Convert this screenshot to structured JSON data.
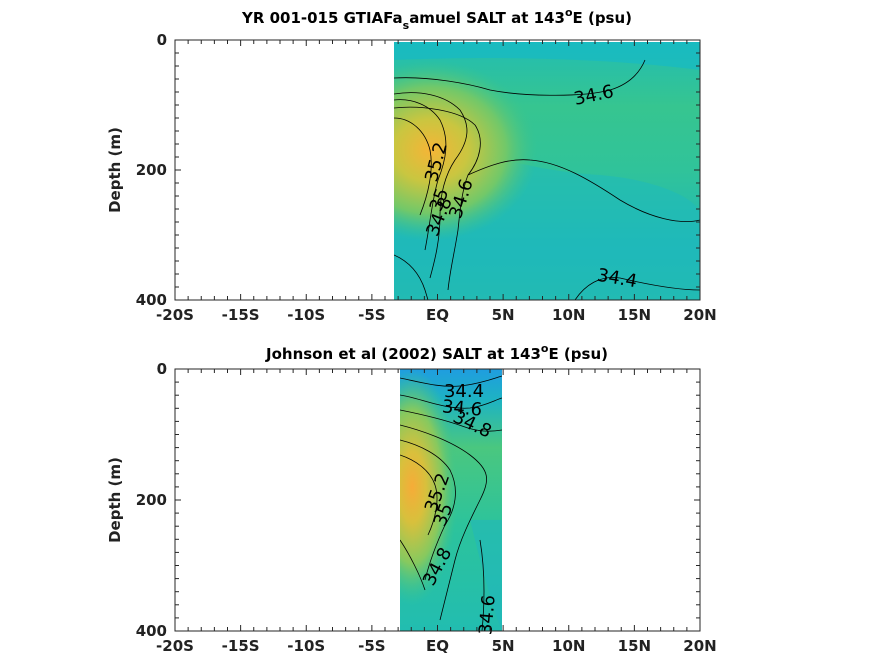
{
  "chart_data": [
    {
      "type": "heatmap",
      "title": "YR 001-015 GTIAFa",
      "title_sub": "s",
      "title_rest": "amuel SALT at 143",
      "title_sup": "o",
      "title_end": "E (psu)",
      "ylabel": "Depth (m)",
      "xlim": [
        -20,
        20
      ],
      "ylim": [
        400,
        0
      ],
      "x_tick_labels": [
        "-20S",
        "-15S",
        "-10S",
        "-5S",
        "EQ",
        "5N",
        "10N",
        "15N",
        "20N"
      ],
      "y_tick_labels": [
        "0",
        "200",
        "400"
      ],
      "data_extent_x": [
        -3.5,
        20
      ],
      "contour_levels": [
        34.4,
        34.6,
        34.8,
        35,
        35.2
      ],
      "contour_labels": [
        "34.6",
        "35.2",
        "35",
        "34.8",
        "34.6",
        "34.4"
      ]
    },
    {
      "type": "heatmap",
      "title": "Johnson et al (2002) SALT at 143",
      "title_sup": "o",
      "title_end": "E (psu)",
      "ylabel": "Depth (m)",
      "xlim": [
        -20,
        20
      ],
      "ylim": [
        400,
        0
      ],
      "x_tick_labels": [
        "-20S",
        "-15S",
        "-10S",
        "-5S",
        "EQ",
        "5N",
        "10N",
        "15N",
        "20N"
      ],
      "y_tick_labels": [
        "0",
        "200",
        "400"
      ],
      "data_extent_x": [
        -3,
        5
      ],
      "contour_levels": [
        34.4,
        34.6,
        34.8,
        35,
        35.2
      ],
      "contour_labels": [
        "34.4",
        "34.6",
        "34.8",
        "35.2",
        "35",
        "34.8",
        "34.6"
      ]
    }
  ],
  "colors": {
    "low": "#1aa3d9",
    "mid_low": "#1fb5b5",
    "mid": "#3cc48a",
    "mid_high": "#9ccc4a",
    "high": "#f0b63a",
    "highest": "#f6a83a"
  }
}
